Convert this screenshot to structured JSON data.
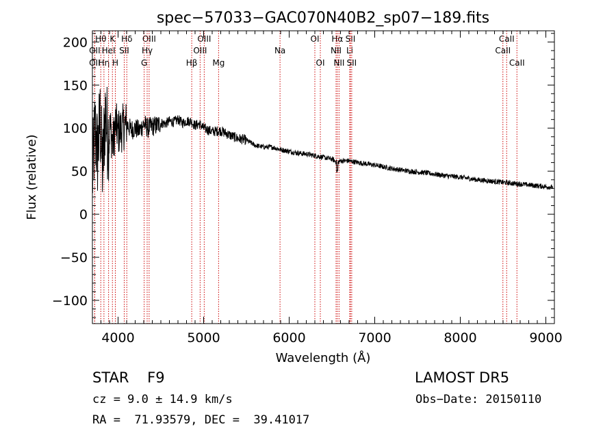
{
  "chart_data": {
    "type": "line",
    "title": "spec−57033−GAC070N40B2_sp07−189.fits",
    "xlabel": "Wavelength (Å)",
    "ylabel": "Flux (relative)",
    "xlim": [
      3700,
      9100
    ],
    "ylim": [
      -127,
      213
    ],
    "x_ticks": [
      4000,
      5000,
      6000,
      7000,
      8000,
      9000
    ],
    "x_tick_labels": [
      "4000",
      "5000",
      "6000",
      "7000",
      "8000",
      "9000"
    ],
    "y_ticks": [
      -100,
      -50,
      0,
      50,
      100,
      150,
      200
    ],
    "y_tick_labels": [
      "−100",
      "−50",
      "0",
      "50",
      "100",
      "150",
      "200"
    ],
    "grid": false,
    "line_color": "#000000",
    "marker_color": "#cc0000",
    "series": [
      {
        "x": [
          3700,
          3730,
          3760,
          3790,
          3820,
          3850,
          3880,
          3910,
          3940,
          3970,
          4000,
          4050,
          4100,
          4150,
          4200,
          4250,
          4300,
          4350,
          4400,
          4450,
          4500,
          4550,
          4600,
          4650,
          4700,
          4750,
          4800,
          4850,
          4900,
          4950,
          5000,
          5100,
          5200,
          5300,
          5400,
          5500,
          5600,
          5700,
          5800,
          5900,
          6000,
          6100,
          6200,
          6300,
          6400,
          6500,
          6563,
          6600,
          6700,
          6800,
          7000,
          7200,
          7400,
          7600,
          7800,
          8000,
          8200,
          8400,
          8600,
          8800,
          9000,
          9100
        ],
        "y": [
          40,
          100,
          70,
          110,
          50,
          120,
          90,
          100,
          80,
          105,
          95,
          100,
          105,
          98,
          100,
          97,
          105,
          100,
          102,
          103,
          106,
          105,
          108,
          107,
          110,
          106,
          108,
          108,
          103,
          105,
          100,
          96,
          97,
          92,
          88,
          86,
          80,
          78,
          78,
          75,
          73,
          71,
          70,
          68,
          66,
          64,
          60,
          62,
          62,
          60,
          57,
          53,
          50,
          48,
          45,
          43,
          40,
          38,
          36,
          34,
          32,
          31
        ]
      }
    ],
    "lines": [
      {
        "label": "OII",
        "x": 3727,
        "row": 2
      },
      {
        "label": "OII",
        "x": 3727,
        "row": 3
      },
      {
        "label": "Hθ",
        "x": 3798,
        "row": 1
      },
      {
        "label": "Hη",
        "x": 3835,
        "row": 3
      },
      {
        "label": "HeI",
        "x": 3889,
        "row": 2
      },
      {
        "label": "K",
        "x": 3934,
        "row": 1
      },
      {
        "label": "H",
        "x": 3968,
        "row": 3
      },
      {
        "label": "SII",
        "x": 4072,
        "row": 2
      },
      {
        "label": "Hδ",
        "x": 4102,
        "row": 1
      },
      {
        "label": "OIII",
        "x": 4363,
        "row": 1
      },
      {
        "label": "Hγ",
        "x": 4340,
        "row": 2
      },
      {
        "label": "G",
        "x": 4305,
        "row": 3
      },
      {
        "label": "Hβ",
        "x": 4861,
        "row": 3
      },
      {
        "label": "OIII",
        "x": 5007,
        "row": 1
      },
      {
        "label": "OIII",
        "x": 4959,
        "row": 2
      },
      {
        "label": "Mg",
        "x": 5175,
        "row": 3
      },
      {
        "label": "Na",
        "x": 5893,
        "row": 2
      },
      {
        "label": "OI",
        "x": 6300,
        "row": 1
      },
      {
        "label": "OI",
        "x": 6364,
        "row": 3
      },
      {
        "label": "Hα",
        "x": 6563,
        "row": 1
      },
      {
        "label": "NII",
        "x": 6548,
        "row": 2
      },
      {
        "label": "NII",
        "x": 6583,
        "row": 3
      },
      {
        "label": "SII",
        "x": 6716,
        "row": 1
      },
      {
        "label": "Li",
        "x": 6708,
        "row": 2
      },
      {
        "label": "SII",
        "x": 6731,
        "row": 3
      },
      {
        "label": "CaII",
        "x": 8542,
        "row": 1
      },
      {
        "label": "CaII",
        "x": 8498,
        "row": 2
      },
      {
        "label": "CaII",
        "x": 8662,
        "row": 3
      }
    ]
  },
  "info": {
    "class_text": "STAR    F9",
    "survey_text": "LAMOST DR5",
    "cz_text": "cz = 9.0 ± 14.9 km/s",
    "obs_date_text": "Obs−Date: 20150110",
    "radec_text": "RA =  71.93579, DEC =  39.41017"
  }
}
